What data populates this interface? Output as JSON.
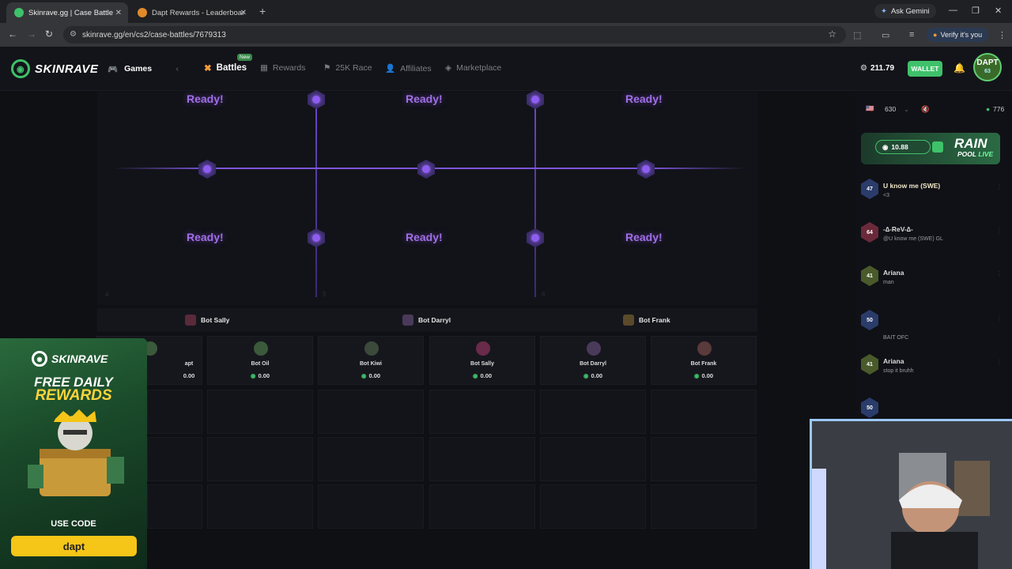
{
  "browser": {
    "tabs": [
      {
        "title": "Skinrave.gg | Case Battle",
        "active": true
      },
      {
        "title": "Dapt Rewards - Leaderboards &",
        "active": false
      }
    ],
    "ask_gemini": "Ask Gemini",
    "url": "skinrave.gg/en/cs2/case-battles/7679313",
    "verify": "Verify it's you"
  },
  "header": {
    "logo_skin": "SKIN",
    "logo_rave": "RAVE",
    "games": "Games",
    "nav": [
      {
        "label": "Battles",
        "active": true,
        "badge": "New"
      },
      {
        "label": "Rewards"
      },
      {
        "label": "25K Race"
      },
      {
        "label": "Affiliates"
      },
      {
        "label": "Marketplace"
      }
    ],
    "balance": "211.79",
    "wallet": "WALLET",
    "avatar_name": "DAPT",
    "avatar_level": "63"
  },
  "battle": {
    "ready_label": "Ready!",
    "slot_numbers": [
      "4",
      "5",
      "6"
    ],
    "teams": [
      "Bot Sally",
      "Bot Darryl",
      "Bot Frank"
    ],
    "players": [
      {
        "name": "apt",
        "value": "0.00"
      },
      {
        "name": "Bot Oil",
        "value": "0.00"
      },
      {
        "name": "Bot Kiwi",
        "value": "0.00"
      },
      {
        "name": "Bot Sally",
        "value": "0.00"
      },
      {
        "name": "Bot Darryl",
        "value": "0.00"
      },
      {
        "name": "Bot Frank",
        "value": "0.00"
      }
    ]
  },
  "chat": {
    "online_count": "630",
    "users_count": "776",
    "rain_amount": "10.88",
    "rain_title": "RAIN",
    "rain_pool": "POOL",
    "rain_live": "LIVE",
    "messages": [
      {
        "level": "47",
        "user": "U know me (SWE)",
        "text": "<3"
      },
      {
        "level": "64",
        "user": "-∆-ReV-∆-",
        "text": "@U know me (SWE) GL"
      },
      {
        "level": "41",
        "user": "Ariana",
        "text": "man"
      },
      {
        "level": "50",
        "user": "",
        "text": "BAIT OFC"
      },
      {
        "level": "41",
        "user": "Ariana",
        "text": "stop it bruhh"
      },
      {
        "level": "50",
        "user": "",
        "text": ""
      }
    ]
  },
  "ad": {
    "logo_skin": "SKIN",
    "logo_rave": "RAVE",
    "line1": "FREE DAILY",
    "line2": "REWARDS",
    "use_code": "USE CODE",
    "code": "dapt"
  }
}
